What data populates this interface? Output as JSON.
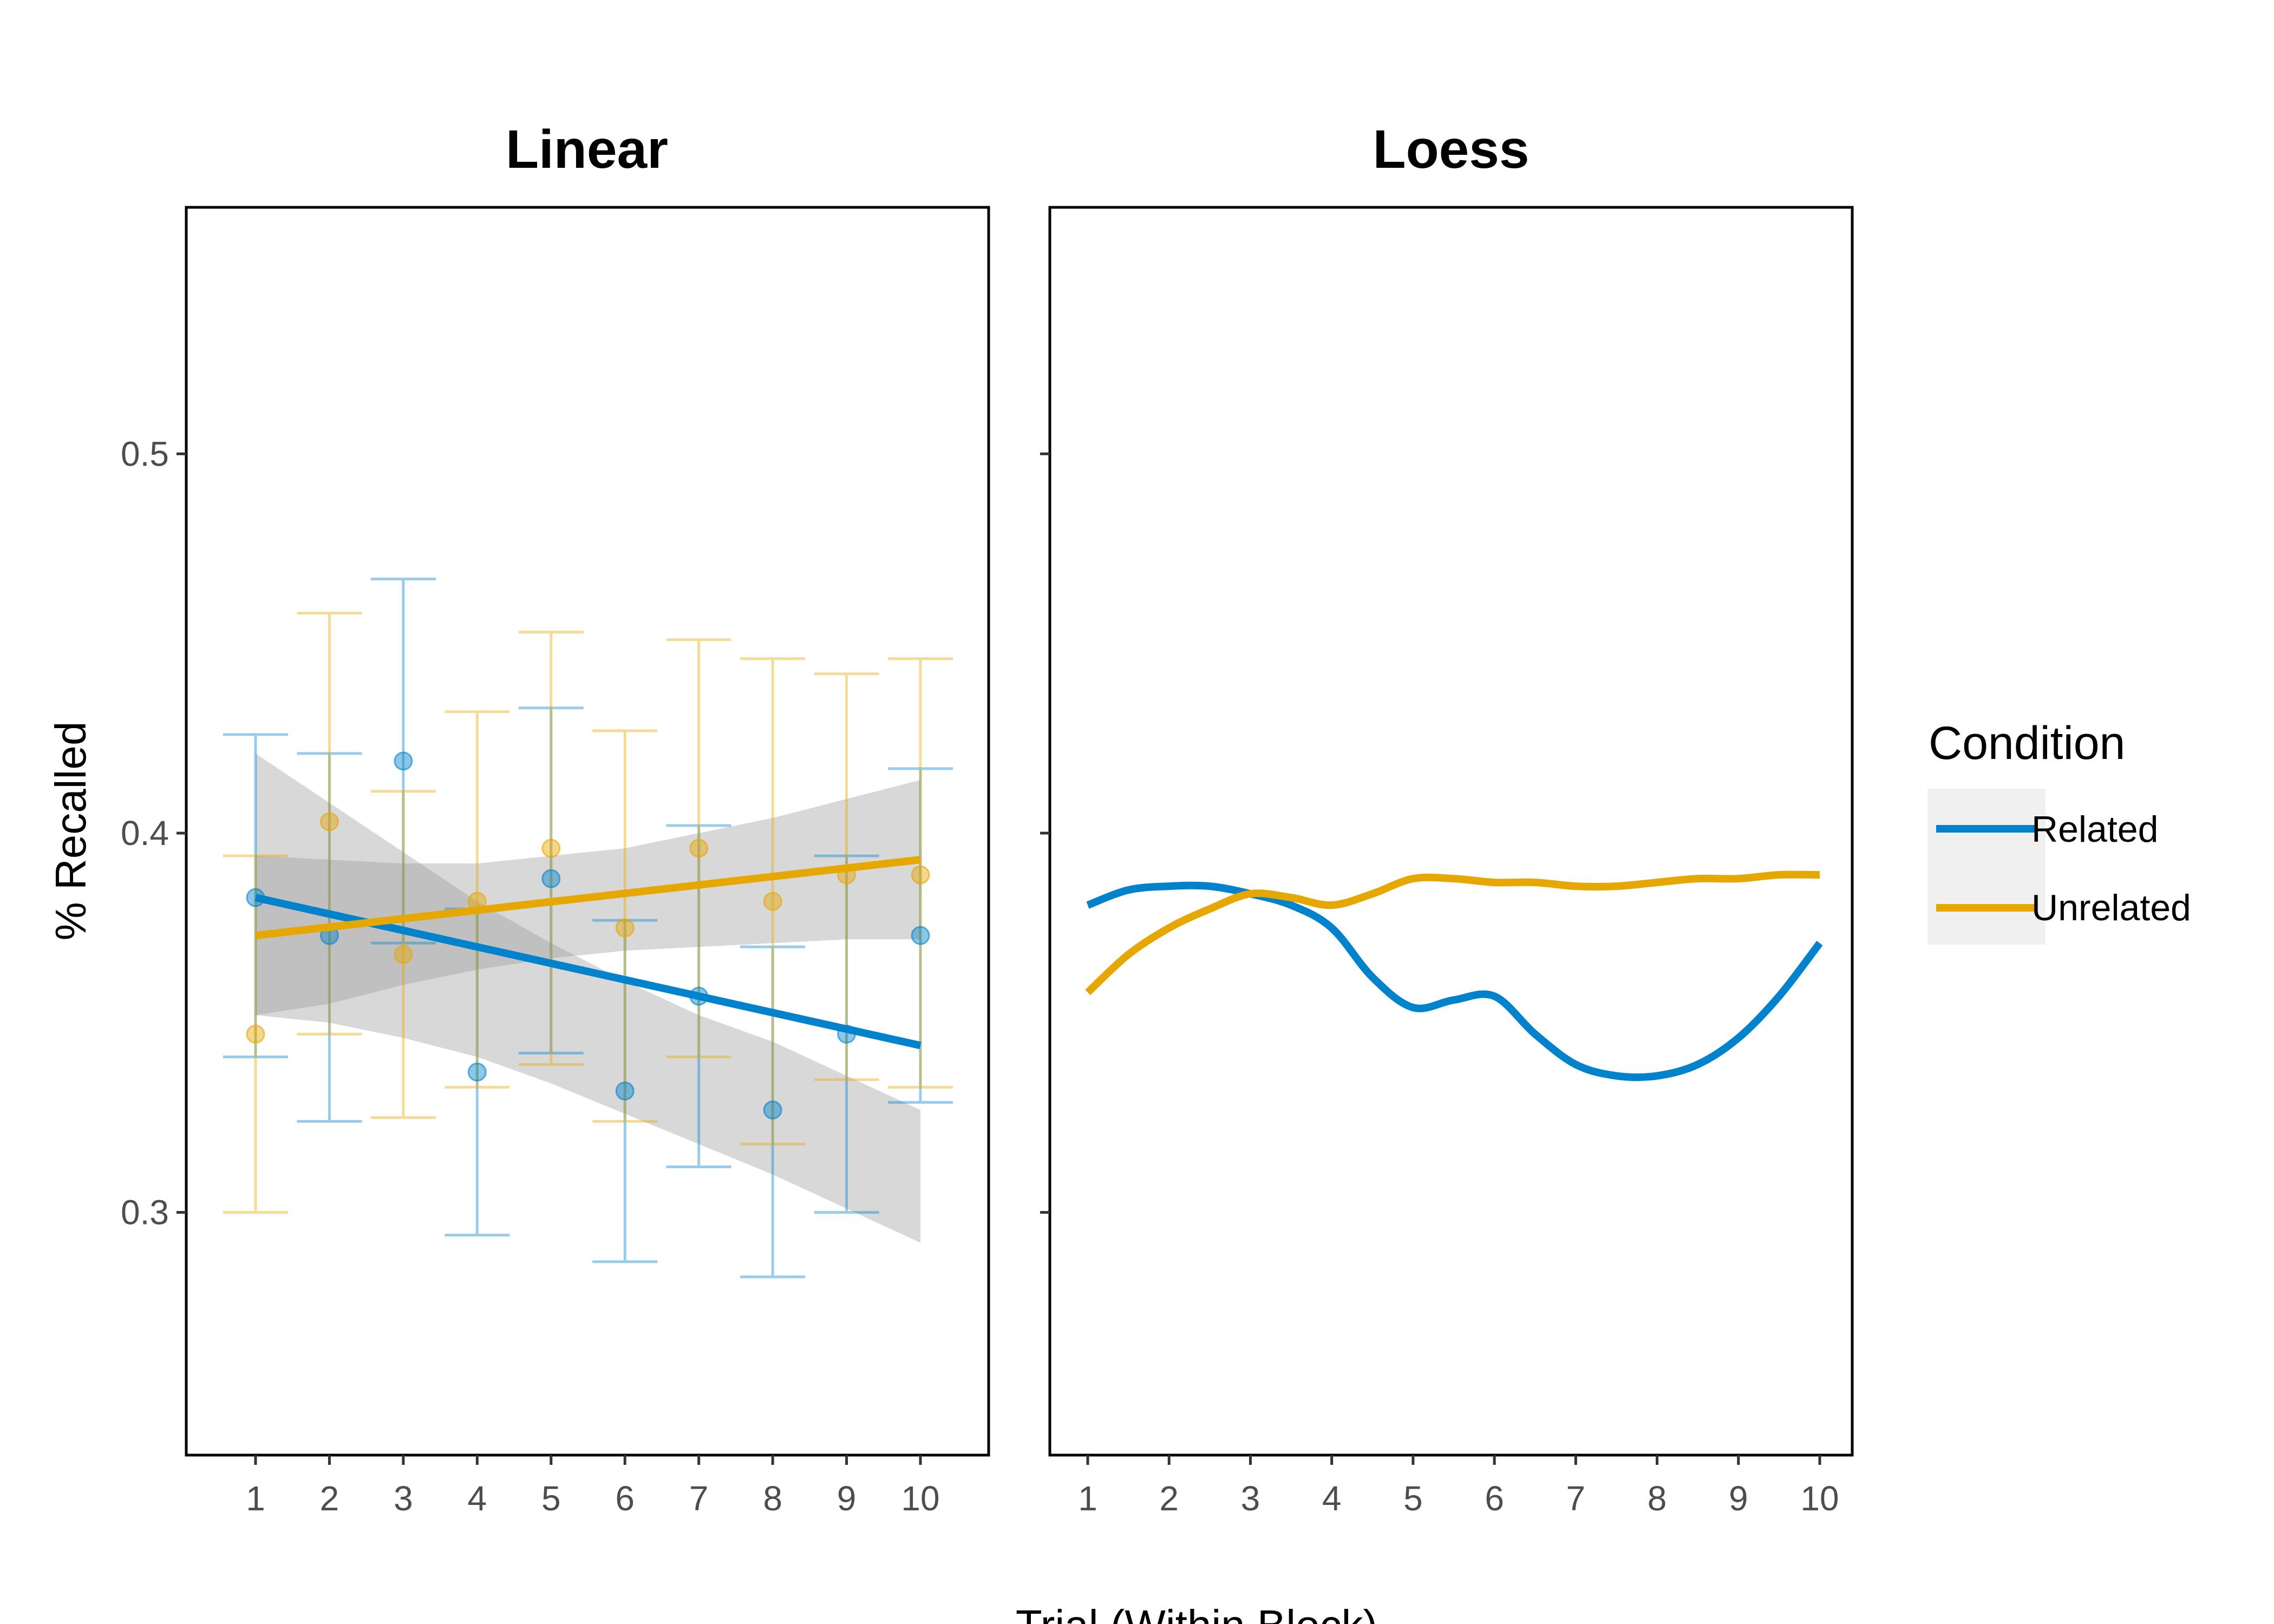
{
  "chart_data": [
    {
      "type": "scatter",
      "title": "Linear",
      "xlabel": "Trial (Within Block)",
      "ylabel": "% Recalled",
      "ylim": [
        0.236,
        0.565
      ],
      "yticks": [
        "0.3",
        "0.4",
        "0.5"
      ],
      "x": [
        "1",
        "2",
        "3",
        "4",
        "5",
        "6",
        "7",
        "8",
        "9",
        "10"
      ],
      "series": [
        {
          "name": "Related",
          "color": "#0082cd",
          "points": [
            0.383,
            0.373,
            0.419,
            0.337,
            0.388,
            0.332,
            0.357,
            0.327,
            0.347,
            0.373
          ],
          "error_low": [
            0.341,
            0.324,
            0.371,
            0.294,
            0.342,
            0.287,
            0.312,
            0.283,
            0.3,
            0.329
          ],
          "error_high": [
            0.426,
            0.421,
            0.467,
            0.38,
            0.433,
            0.377,
            0.402,
            0.37,
            0.394,
            0.417
          ],
          "fit": {
            "type": "linear",
            "start": 0.383,
            "end": 0.344
          },
          "ribbon_low": [
            0.352,
            0.35,
            0.346,
            0.341,
            0.334,
            0.326,
            0.318,
            0.31,
            0.301,
            0.292
          ],
          "ribbon_high": [
            0.421,
            0.408,
            0.395,
            0.382,
            0.371,
            0.361,
            0.352,
            0.345,
            0.336,
            0.327
          ]
        },
        {
          "name": "Unrelated",
          "color": "#e6a700",
          "points": [
            0.347,
            0.403,
            0.368,
            0.382,
            0.396,
            0.375,
            0.396,
            0.382,
            0.389,
            0.389
          ],
          "error_low": [
            0.3,
            0.347,
            0.325,
            0.333,
            0.339,
            0.324,
            0.341,
            0.318,
            0.335,
            0.333
          ],
          "error_high": [
            0.394,
            0.458,
            0.411,
            0.432,
            0.453,
            0.427,
            0.451,
            0.446,
            0.442,
            0.446
          ],
          "fit": {
            "type": "linear",
            "start": 0.373,
            "end": 0.393
          },
          "ribbon_low": [
            0.352,
            0.355,
            0.36,
            0.364,
            0.367,
            0.369,
            0.37,
            0.371,
            0.372,
            0.372
          ],
          "ribbon_high": [
            0.394,
            0.393,
            0.392,
            0.392,
            0.394,
            0.396,
            0.4,
            0.404,
            0.409,
            0.414
          ]
        }
      ]
    },
    {
      "type": "line",
      "title": "Loess",
      "xlabel": "Trial (Within Block)",
      "ylabel": "% Recalled",
      "ylim": [
        0.236,
        0.565
      ],
      "x": [
        "1",
        "2",
        "3",
        "4",
        "5",
        "6",
        "7",
        "8",
        "9",
        "10"
      ],
      "series": [
        {
          "name": "Related",
          "color": "#0082cd",
          "x": [
            1,
            1.5,
            2,
            2.5,
            3,
            3.5,
            4,
            4.5,
            5,
            5.5,
            6,
            6.5,
            7,
            7.5,
            8,
            8.5,
            9,
            9.5,
            10
          ],
          "values": [
            0.381,
            0.385,
            0.386,
            0.386,
            0.384,
            0.381,
            0.375,
            0.362,
            0.354,
            0.356,
            0.357,
            0.347,
            0.339,
            0.336,
            0.336,
            0.339,
            0.346,
            0.357,
            0.371
          ]
        },
        {
          "name": "Unrelated",
          "color": "#e6a700",
          "x": [
            1,
            1.5,
            2,
            2.5,
            3,
            3.5,
            4,
            4.5,
            5,
            5.5,
            6,
            6.5,
            7,
            7.5,
            8,
            8.5,
            9,
            9.5,
            10
          ],
          "values": [
            0.358,
            0.368,
            0.375,
            0.38,
            0.384,
            0.383,
            0.381,
            0.384,
            0.388,
            0.388,
            0.387,
            0.387,
            0.386,
            0.386,
            0.387,
            0.388,
            0.388,
            0.389,
            0.389
          ]
        }
      ]
    }
  ],
  "legend": {
    "title": "Condition",
    "position": "right",
    "items": [
      {
        "label": "Related",
        "color": "#0082cd"
      },
      {
        "label": "Unrelated",
        "color": "#e6a700"
      }
    ]
  },
  "style": {
    "ribbon_color": "#999999",
    "axis_color": "#000000"
  }
}
